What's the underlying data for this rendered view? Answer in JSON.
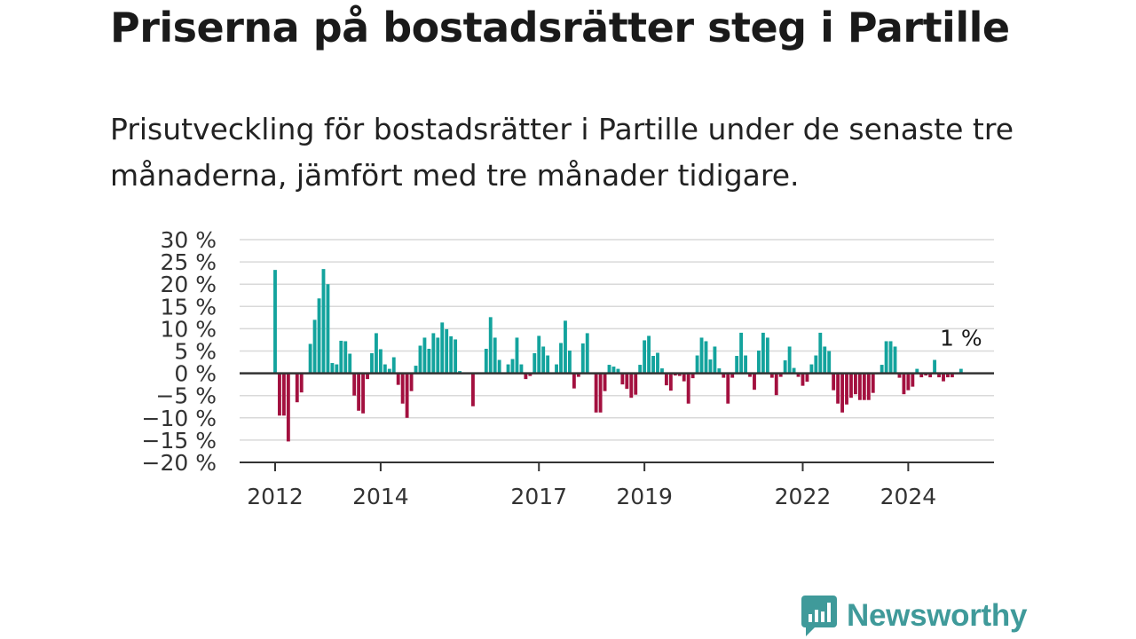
{
  "title": "Priserna på bostadsrätter steg i Partille",
  "subtitle": "Prisutveckling för bostadsrätter i Partille under de senaste tre månaderna, jämfört med tre månader tidigare.",
  "brand": {
    "name": "Newsworthy",
    "color": "#3f9a9a",
    "icon": "newsworthy-chart-logo-icon"
  },
  "chart_data": {
    "type": "bar",
    "x_unit": "month",
    "x_start": "2011-09",
    "ylim": [
      -20,
      30
    ],
    "grid": true,
    "colors": {
      "positive": "#13a39d",
      "negative": "#a3103f"
    },
    "y_ticks": [
      {
        "value": 30,
        "label": "30 %"
      },
      {
        "value": 25,
        "label": "25 %"
      },
      {
        "value": 20,
        "label": "20 %"
      },
      {
        "value": 15,
        "label": "15 %"
      },
      {
        "value": 10,
        "label": "10 %"
      },
      {
        "value": 5,
        "label": "5 %"
      },
      {
        "value": 0,
        "label": "0 %"
      },
      {
        "value": -5,
        "label": "−5 %"
      },
      {
        "value": -10,
        "label": "−10 %"
      },
      {
        "value": -15,
        "label": "−15 %"
      },
      {
        "value": -20,
        "label": "−20 %"
      }
    ],
    "x_ticks": [
      {
        "date": "2012-01",
        "label": "2012"
      },
      {
        "date": "2014-01",
        "label": "2014"
      },
      {
        "date": "2017-01",
        "label": "2017"
      },
      {
        "date": "2019-01",
        "label": "2019"
      },
      {
        "date": "2022-01",
        "label": "2022"
      },
      {
        "date": "2024-01",
        "label": "2024"
      }
    ],
    "annotation": {
      "label": "1 %"
    },
    "values": [
      null,
      null,
      null,
      null,
      23.2,
      -9.5,
      -9.5,
      -15.3,
      null,
      -6.5,
      -4.3,
      null,
      6.6,
      12.0,
      16.8,
      23.4,
      20.0,
      2.3,
      2.0,
      7.3,
      7.2,
      4.4,
      -5.0,
      -8.4,
      -9.0,
      -1.3,
      4.5,
      9.0,
      5.4,
      2.0,
      1.0,
      3.6,
      -2.6,
      -6.8,
      -10.0,
      -4.0,
      1.7,
      6.2,
      8.0,
      5.5,
      9.0,
      8.0,
      11.4,
      9.9,
      8.3,
      7.6,
      0.5,
      null,
      null,
      -7.4,
      null,
      null,
      5.5,
      12.6,
      8.0,
      3.0,
      null,
      2.0,
      3.2,
      8.0,
      2.0,
      -1.3,
      -0.6,
      4.5,
      8.4,
      6.0,
      4.0,
      null,
      2.0,
      6.8,
      11.8,
      5.1,
      -3.4,
      -0.8,
      6.7,
      9.0,
      0.2,
      -8.8,
      -8.8,
      -4.0,
      1.9,
      1.5,
      1.0,
      -2.5,
      -3.5,
      -5.5,
      -4.8,
      1.9,
      7.4,
      8.4,
      3.9,
      4.6,
      1.1,
      -2.7,
      -3.9,
      -0.5,
      -0.6,
      -1.8,
      -6.8,
      -1.1,
      4.0,
      8.0,
      7.2,
      3.1,
      6.0,
      1.1,
      -1.0,
      -6.8,
      -1.0,
      3.9,
      9.1,
      4.0,
      -0.8,
      -3.7,
      5.1,
      9.1,
      8.0,
      -1.0,
      -4.9,
      -0.8,
      2.9,
      6.0,
      1.2,
      -0.8,
      -2.8,
      -1.9,
      2.0,
      4.0,
      9.1,
      6.0,
      5.0,
      -3.8,
      -6.8,
      -8.8,
      -7.0,
      -5.5,
      -4.7,
      -6.0,
      -6.0,
      -6.0,
      -4.4,
      -0.2,
      1.9,
      7.2,
      7.2,
      6.0,
      -1.0,
      -4.7,
      -3.8,
      -3.0,
      1.0,
      -0.9,
      -0.5,
      -0.9,
      3.0,
      -0.9,
      -1.8,
      -0.9,
      -0.9,
      null,
      1.0
    ]
  }
}
